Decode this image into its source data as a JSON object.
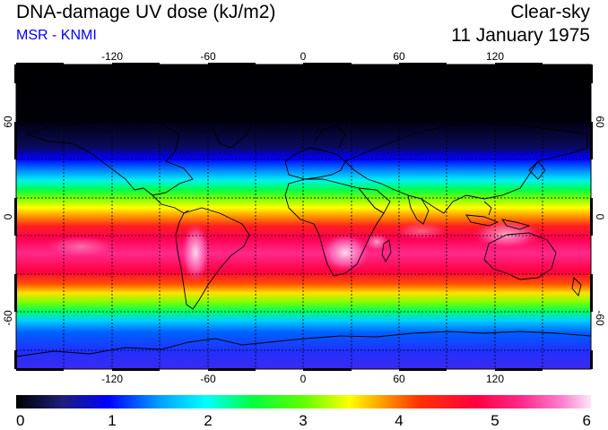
{
  "header": {
    "title": "DNA-damage UV dose (kJ/m2)",
    "source": "MSR - KNMI",
    "condition": "Clear-sky",
    "date": "11 January 1975"
  },
  "map": {
    "longitude_ticks": [
      "-120",
      "-60",
      "0",
      "60",
      "120"
    ],
    "latitude_ticks": [
      "60",
      "0",
      "-60"
    ],
    "longitude_range": [
      -180,
      180
    ],
    "latitude_range": [
      -90,
      90
    ]
  },
  "colorbar": {
    "min": 0,
    "max": 6,
    "tick_labels": [
      "0",
      "1",
      "2",
      "3",
      "4",
      "5",
      "6"
    ],
    "colors": [
      "#000000",
      "#1e1e7a",
      "#0000ff",
      "#00a0ff",
      "#00ffff",
      "#00ff40",
      "#60ff00",
      "#ffff00",
      "#ff9900",
      "#ff3300",
      "#ff0040",
      "#ff2a8a",
      "#ff80d0",
      "#ffe6f5"
    ]
  }
}
